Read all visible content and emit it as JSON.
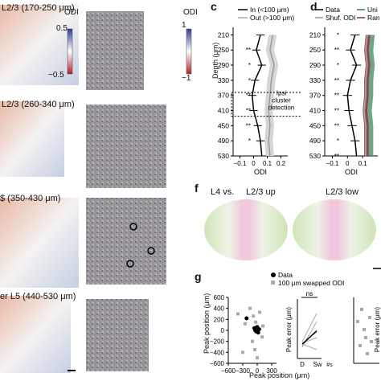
{
  "panels": {
    "c": {
      "letter": "c"
    },
    "d": {
      "letter": "d"
    },
    "f": {
      "letter": "f"
    },
    "g": {
      "letter": "g"
    }
  },
  "maps": {
    "rows": [
      {
        "label": "L2/3 (170-250 μm)"
      },
      {
        "label": "L2/3 (260-340 μm)"
      },
      {
        "label": "$ (350-430 μm)"
      },
      {
        "label": "er L5 (440-530 μm)"
      }
    ],
    "colorbar_left": {
      "title": "ODI",
      "max": "0.5",
      "min": "−0.5"
    },
    "colorbar_right": {
      "title": "ODI",
      "max": "1",
      "min": "−1"
    }
  },
  "panel_c": {
    "legend": [
      "In (<100 μm)",
      "Out (>100 μm)"
    ],
    "ylabel": "Depth (μm)",
    "xlabel": "ODI",
    "yticks": [
      "210",
      "250",
      "290",
      "330",
      "370",
      "410",
      "450",
      "490",
      "530"
    ],
    "xticks": [
      "−0.1",
      "0",
      "0.1",
      "0.2"
    ],
    "box_text": [
      "Ipsi",
      "cluster",
      "detection"
    ],
    "stars": [
      "**",
      "*",
      "*",
      "**",
      "**",
      "**",
      "*"
    ]
  },
  "panel_d": {
    "legend": [
      "Data",
      "Uni",
      "Shuf. ODI",
      "Ran"
    ],
    "yticks": [
      "210",
      "250",
      "290",
      "330",
      "370",
      "410",
      "450",
      "490",
      "530"
    ],
    "xticks": [
      "−0.1",
      "0",
      "0.1"
    ],
    "xlabel": "ODI",
    "stars": [
      "*",
      "**",
      "*",
      "**",
      "**",
      "**",
      "**",
      "*",
      "**"
    ]
  },
  "panel_f": {
    "left_label": "L4 vs.",
    "titles": [
      "L2/3 up",
      "L2/3 low"
    ]
  },
  "panel_g": {
    "legend": [
      "Data",
      "100 μm swapped ODI"
    ],
    "ylabel": "Peak position (μm)",
    "xlabel": "Peak position (μm)",
    "yticks": [
      "600",
      "400",
      "200",
      "0",
      "−200",
      "−400",
      "−600"
    ],
    "xticks": [
      "−600",
      "−300",
      "0",
      "300"
    ],
    "inset_ylabel": "Peak error (μm)",
    "inset_sig": "ns",
    "inset_xticks": [
      "D",
      "Sw"
    ],
    "right_ylabel": "Peak error (μm)",
    "right_tick": "#s"
  },
  "chart_data": [
    {
      "type": "line",
      "panel": "c",
      "xlabel": "ODI",
      "ylabel": "Depth (μm)",
      "xlim": [
        -0.15,
        0.25
      ],
      "ylim": [
        530,
        190
      ],
      "series": [
        {
          "name": "In (<100 μm)",
          "x": [
            0.05,
            0.02,
            0.06,
            0.01,
            -0.01,
            0.0,
            0.03,
            0.05,
            0.06
          ],
          "y": [
            210,
            250,
            290,
            330,
            370,
            410,
            450,
            490,
            530
          ]
        },
        {
          "name": "Out (>100 μm)",
          "x": [
            0.14,
            0.12,
            0.15,
            0.13,
            0.12,
            0.11,
            0.12,
            0.11,
            0.12
          ],
          "y": [
            210,
            250,
            290,
            330,
            370,
            410,
            450,
            490,
            530
          ]
        }
      ]
    },
    {
      "type": "line",
      "panel": "d",
      "xlabel": "ODI",
      "xlim": [
        -0.15,
        0.2
      ],
      "ylim": [
        530,
        190
      ],
      "series": [
        {
          "name": "Data",
          "x": [
            0.05,
            0.02,
            0.06,
            0.02,
            0.0,
            0.01,
            0.03,
            0.05,
            0.06
          ],
          "y": [
            210,
            250,
            290,
            330,
            370,
            410,
            450,
            490,
            530
          ]
        },
        {
          "name": "Shuf. ODI",
          "x": [
            0.13,
            0.12,
            0.13,
            0.12,
            0.12,
            0.11,
            0.12,
            0.12,
            0.12
          ],
          "y": [
            210,
            250,
            290,
            330,
            370,
            410,
            450,
            490,
            530
          ]
        }
      ]
    },
    {
      "type": "scatter",
      "panel": "g",
      "xlabel": "Peak position (μm)",
      "ylabel": "Peak position (μm)",
      "xlim": [
        -600,
        400
      ],
      "ylim": [
        -600,
        600
      ],
      "series": [
        {
          "name": "Data",
          "x": [
            -220,
            -60,
            -40,
            -20,
            0,
            20,
            40
          ],
          "y": [
            220,
            40,
            0,
            -20,
            60,
            -40,
            20
          ]
        },
        {
          "name": "100 μm swapped ODI",
          "x": [
            -400,
            -300,
            -250,
            -150,
            -100,
            -80,
            -50,
            -30,
            0,
            50,
            100,
            120
          ],
          "y": [
            300,
            -400,
            120,
            400,
            -200,
            260,
            -350,
            150,
            -500,
            330,
            -120,
            80
          ]
        }
      ]
    }
  ]
}
